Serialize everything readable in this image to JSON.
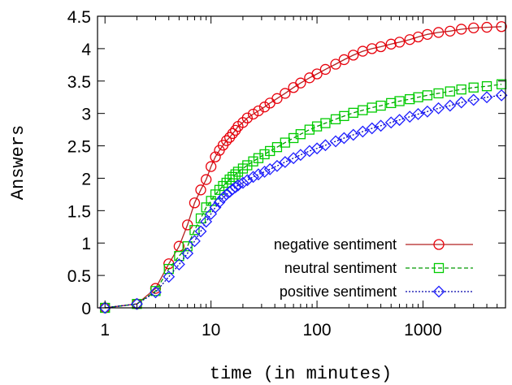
{
  "chart_data": {
    "type": "line",
    "xlabel": "time (in minutes)",
    "ylabel": "Answers",
    "x_scale": "log",
    "xlim": [
      0.85,
      6000
    ],
    "ylim": [
      0,
      4.5
    ],
    "x_ticks": [
      {
        "value": 1,
        "label": "1"
      },
      {
        "value": 10,
        "label": "10"
      },
      {
        "value": 100,
        "label": "100"
      },
      {
        "value": 1000,
        "label": "1000"
      }
    ],
    "y_ticks": [
      {
        "value": 0,
        "label": "0"
      },
      {
        "value": 0.5,
        "label": "0.5"
      },
      {
        "value": 1,
        "label": "1"
      },
      {
        "value": 1.5,
        "label": "1.5"
      },
      {
        "value": 2,
        "label": "2"
      },
      {
        "value": 2.5,
        "label": "2.5"
      },
      {
        "value": 3,
        "label": "3"
      },
      {
        "value": 3.5,
        "label": "3.5"
      },
      {
        "value": 4,
        "label": "4"
      },
      {
        "value": 4.5,
        "label": "4.5"
      }
    ],
    "legend_position": "bottom-right",
    "series": [
      {
        "name": "negative sentiment",
        "color": "#e8000b",
        "line_color": "#b22222",
        "marker": "circle",
        "line_style": "solid",
        "points": [
          [
            1,
            0
          ],
          [
            2,
            0.06
          ],
          [
            3,
            0.3
          ],
          [
            4,
            0.68
          ],
          [
            5,
            0.95
          ],
          [
            6,
            1.28
          ],
          [
            7,
            1.62
          ],
          [
            8,
            1.82
          ],
          [
            9,
            1.98
          ],
          [
            10,
            2.18
          ],
          [
            11,
            2.33
          ],
          [
            12,
            2.43
          ],
          [
            13,
            2.51
          ],
          [
            14,
            2.58
          ],
          [
            15,
            2.63
          ],
          [
            16,
            2.69
          ],
          [
            17,
            2.74
          ],
          [
            18,
            2.8
          ],
          [
            20,
            2.86
          ],
          [
            22,
            2.93
          ],
          [
            25,
            2.99
          ],
          [
            28,
            3.04
          ],
          [
            32,
            3.1
          ],
          [
            36,
            3.16
          ],
          [
            42,
            3.23
          ],
          [
            50,
            3.31
          ],
          [
            60,
            3.4
          ],
          [
            70,
            3.47
          ],
          [
            85,
            3.55
          ],
          [
            100,
            3.61
          ],
          [
            120,
            3.68
          ],
          [
            150,
            3.76
          ],
          [
            180,
            3.83
          ],
          [
            220,
            3.9
          ],
          [
            270,
            3.96
          ],
          [
            330,
            4.0
          ],
          [
            400,
            4.03
          ],
          [
            500,
            4.07
          ],
          [
            600,
            4.1
          ],
          [
            750,
            4.14
          ],
          [
            900,
            4.18
          ],
          [
            1100,
            4.22
          ],
          [
            1400,
            4.25
          ],
          [
            1800,
            4.27
          ],
          [
            2300,
            4.3
          ],
          [
            3000,
            4.32
          ],
          [
            4000,
            4.33
          ],
          [
            5500,
            4.34
          ]
        ]
      },
      {
        "name": "neutral sentiment",
        "color": "#00cc00",
        "line_color": "#009900",
        "marker": "square",
        "line_style": "dashed",
        "points": [
          [
            1,
            0
          ],
          [
            2,
            0.06
          ],
          [
            3,
            0.26
          ],
          [
            4,
            0.6
          ],
          [
            5,
            0.8
          ],
          [
            6,
            0.95
          ],
          [
            7,
            1.2
          ],
          [
            8,
            1.38
          ],
          [
            9,
            1.55
          ],
          [
            10,
            1.65
          ],
          [
            11,
            1.75
          ],
          [
            12,
            1.82
          ],
          [
            13,
            1.88
          ],
          [
            14,
            1.93
          ],
          [
            15,
            1.98
          ],
          [
            16,
            2.02
          ],
          [
            17,
            2.06
          ],
          [
            18,
            2.1
          ],
          [
            20,
            2.15
          ],
          [
            22,
            2.2
          ],
          [
            25,
            2.26
          ],
          [
            28,
            2.31
          ],
          [
            32,
            2.37
          ],
          [
            36,
            2.42
          ],
          [
            42,
            2.48
          ],
          [
            50,
            2.55
          ],
          [
            60,
            2.62
          ],
          [
            70,
            2.68
          ],
          [
            85,
            2.75
          ],
          [
            100,
            2.8
          ],
          [
            120,
            2.85
          ],
          [
            150,
            2.91
          ],
          [
            180,
            2.96
          ],
          [
            220,
            3.01
          ],
          [
            270,
            3.05
          ],
          [
            330,
            3.09
          ],
          [
            400,
            3.12
          ],
          [
            500,
            3.16
          ],
          [
            600,
            3.19
          ],
          [
            750,
            3.22
          ],
          [
            900,
            3.25
          ],
          [
            1100,
            3.28
          ],
          [
            1400,
            3.31
          ],
          [
            1800,
            3.34
          ],
          [
            2300,
            3.37
          ],
          [
            3000,
            3.4
          ],
          [
            4000,
            3.42
          ],
          [
            5500,
            3.45
          ]
        ]
      },
      {
        "name": "positive sentiment",
        "color": "#1f1fff",
        "line_color": "#0000aa",
        "marker": "diamond",
        "line_style": "dotted",
        "points": [
          [
            1,
            0
          ],
          [
            2,
            0.06
          ],
          [
            3,
            0.24
          ],
          [
            4,
            0.48
          ],
          [
            5,
            0.67
          ],
          [
            6,
            0.84
          ],
          [
            7,
            1.03
          ],
          [
            8,
            1.18
          ],
          [
            9,
            1.33
          ],
          [
            10,
            1.45
          ],
          [
            11,
            1.55
          ],
          [
            12,
            1.63
          ],
          [
            13,
            1.7
          ],
          [
            14,
            1.75
          ],
          [
            15,
            1.79
          ],
          [
            16,
            1.83
          ],
          [
            17,
            1.86
          ],
          [
            18,
            1.89
          ],
          [
            20,
            1.93
          ],
          [
            22,
            1.97
          ],
          [
            25,
            2.02
          ],
          [
            28,
            2.06
          ],
          [
            32,
            2.1
          ],
          [
            36,
            2.14
          ],
          [
            42,
            2.19
          ],
          [
            50,
            2.25
          ],
          [
            60,
            2.31
          ],
          [
            70,
            2.36
          ],
          [
            85,
            2.42
          ],
          [
            100,
            2.46
          ],
          [
            120,
            2.51
          ],
          [
            150,
            2.57
          ],
          [
            180,
            2.62
          ],
          [
            220,
            2.67
          ],
          [
            270,
            2.72
          ],
          [
            330,
            2.77
          ],
          [
            400,
            2.81
          ],
          [
            500,
            2.86
          ],
          [
            600,
            2.9
          ],
          [
            750,
            2.95
          ],
          [
            900,
            2.99
          ],
          [
            1100,
            3.03
          ],
          [
            1400,
            3.08
          ],
          [
            1800,
            3.12
          ],
          [
            2300,
            3.17
          ],
          [
            3000,
            3.21
          ],
          [
            4000,
            3.25
          ],
          [
            5500,
            3.28
          ]
        ]
      }
    ]
  }
}
